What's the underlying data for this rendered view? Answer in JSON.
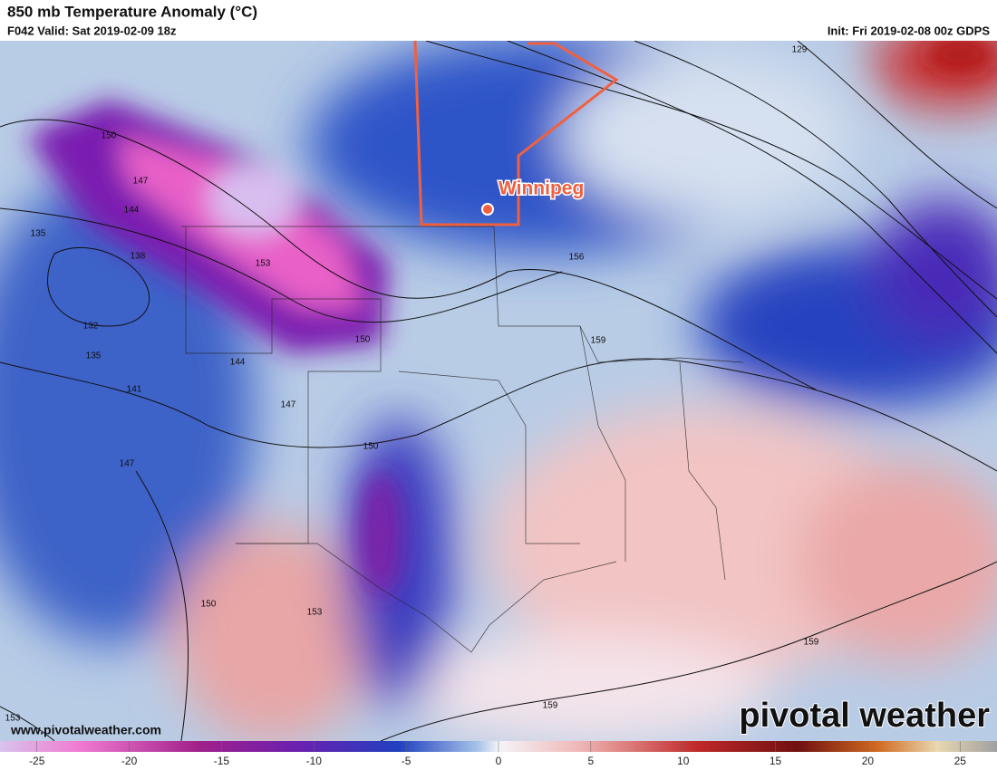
{
  "header": {
    "title": "850 mb Temperature Anomaly (°C)",
    "valid": "F042 Valid: Sat 2019-02-09 18z",
    "init": "Init: Fri 2019-02-08 00z GDPS"
  },
  "map": {
    "city": "Winnipeg",
    "contour_labels": [
      129,
      150,
      147,
      144,
      135,
      138,
      153,
      132,
      135,
      141,
      144,
      150,
      147,
      150,
      147,
      156,
      159,
      150,
      153,
      159,
      159,
      153
    ],
    "website": "www.pivotalweather.com",
    "brand": "pivotal weather"
  },
  "colorbar": {
    "lim": [
      -27,
      27
    ],
    "ticks": [
      -25,
      -20,
      -15,
      -10,
      -5,
      0,
      5,
      10,
      15,
      20,
      25
    ]
  }
}
